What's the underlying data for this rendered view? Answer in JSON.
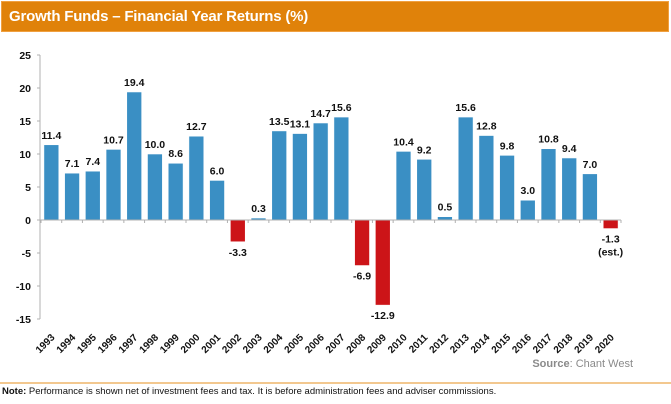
{
  "header": {
    "title": "Growth Funds – Financial Year Returns (%)"
  },
  "source": {
    "label": "Source",
    "separator": ":",
    "value": " Chant West"
  },
  "note": {
    "label": "Note:",
    "text": " Performance is shown net of investment fees and tax. It is before administration fees and adviser commissions."
  },
  "colors": {
    "header_bg": "#e0820a",
    "positive_bar": "#3a8fc4",
    "negative_bar": "#cc1418",
    "axis": "#b0b0b0"
  },
  "chart_data": {
    "type": "bar",
    "title": "Growth Funds – Financial Year Returns (%)",
    "xlabel": "",
    "ylabel": "",
    "ylim": [
      -15,
      25
    ],
    "yticks": [
      25,
      20,
      15,
      10,
      5,
      0,
      -5,
      -10,
      -15
    ],
    "grid": false,
    "legend": "none",
    "categories": [
      "1993",
      "1994",
      "1995",
      "1996",
      "1997",
      "1998",
      "1999",
      "2000",
      "2001",
      "2002",
      "2003",
      "2004",
      "2005",
      "2006",
      "2007",
      "2008",
      "2009",
      "2010",
      "2011",
      "2012",
      "2013",
      "2014",
      "2015",
      "2016",
      "2017",
      "2018",
      "2019",
      "2020"
    ],
    "values": [
      11.4,
      7.1,
      7.4,
      10.7,
      19.4,
      10.0,
      8.6,
      12.7,
      6.0,
      -3.3,
      0.3,
      13.5,
      13.1,
      14.7,
      15.6,
      -6.9,
      -12.9,
      10.4,
      9.2,
      0.5,
      15.6,
      12.8,
      9.8,
      3.0,
      10.8,
      9.4,
      7.0,
      -1.3
    ],
    "data_labels": [
      "11.4",
      "7.1",
      "7.4",
      "10.7",
      "19.4",
      "10.0",
      "8.6",
      "12.7",
      "6.0",
      "-3.3",
      "0.3",
      "13.5",
      "13.1",
      "14.7",
      "15.6",
      "-6.9",
      "-12.9",
      "10.4",
      "9.2",
      "0.5",
      "15.6",
      "12.8",
      "9.8",
      "3.0",
      "10.8",
      "9.4",
      "7.0",
      "-1.3"
    ],
    "annotations": [
      {
        "category": "2020",
        "text": "(est.)"
      }
    ]
  }
}
